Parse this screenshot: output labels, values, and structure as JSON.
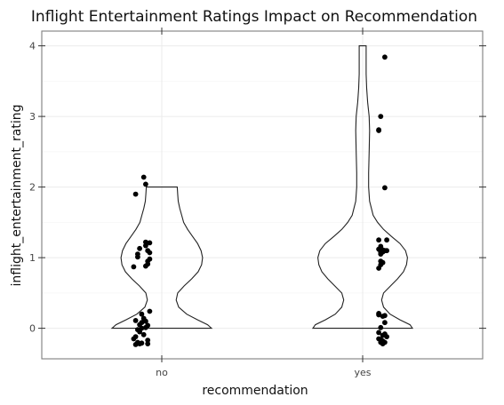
{
  "chart_data": {
    "type": "violin-jitter",
    "title": "Inflight Entertainment Ratings Impact on Recommendation",
    "xlabel": "recommendation",
    "ylabel": "inflight_entertainment_rating",
    "categories": [
      "no",
      "yes"
    ],
    "yticks": [
      0,
      1,
      2,
      3,
      4
    ],
    "ylim": [
      -0.45,
      4.0
    ],
    "grid": true,
    "violins": [
      {
        "category": "no",
        "y_range": [
          0,
          2
        ],
        "density_profile": [
          [
            0.0,
            1.0
          ],
          [
            0.05,
            0.92
          ],
          [
            0.12,
            0.72
          ],
          [
            0.2,
            0.5
          ],
          [
            0.3,
            0.34
          ],
          [
            0.4,
            0.29
          ],
          [
            0.5,
            0.32
          ],
          [
            0.6,
            0.45
          ],
          [
            0.7,
            0.6
          ],
          [
            0.8,
            0.73
          ],
          [
            0.9,
            0.8
          ],
          [
            1.0,
            0.82
          ],
          [
            1.1,
            0.79
          ],
          [
            1.2,
            0.72
          ],
          [
            1.3,
            0.62
          ],
          [
            1.4,
            0.52
          ],
          [
            1.5,
            0.44
          ],
          [
            1.6,
            0.4
          ],
          [
            1.7,
            0.36
          ],
          [
            1.8,
            0.33
          ],
          [
            1.9,
            0.32
          ],
          [
            2.0,
            0.31
          ]
        ]
      },
      {
        "category": "yes",
        "y_range": [
          0,
          4
        ],
        "density_profile": [
          [
            0.0,
            1.0
          ],
          [
            0.05,
            0.95
          ],
          [
            0.12,
            0.75
          ],
          [
            0.2,
            0.55
          ],
          [
            0.3,
            0.42
          ],
          [
            0.4,
            0.38
          ],
          [
            0.5,
            0.42
          ],
          [
            0.6,
            0.56
          ],
          [
            0.7,
            0.7
          ],
          [
            0.8,
            0.82
          ],
          [
            0.9,
            0.88
          ],
          [
            1.0,
            0.9
          ],
          [
            1.1,
            0.86
          ],
          [
            1.2,
            0.75
          ],
          [
            1.3,
            0.58
          ],
          [
            1.4,
            0.42
          ],
          [
            1.5,
            0.3
          ],
          [
            1.6,
            0.21
          ],
          [
            1.8,
            0.14
          ],
          [
            2.0,
            0.12
          ],
          [
            2.2,
            0.12
          ],
          [
            2.5,
            0.13
          ],
          [
            2.8,
            0.14
          ],
          [
            3.0,
            0.13
          ],
          [
            3.2,
            0.1
          ],
          [
            3.4,
            0.08
          ],
          [
            3.6,
            0.07
          ],
          [
            3.8,
            0.07
          ],
          [
            4.0,
            0.07
          ]
        ]
      }
    ],
    "points": [
      {
        "x": -0.09,
        "y": 2.14,
        "category": "no"
      },
      {
        "x": -0.08,
        "y": 2.04,
        "category": "no"
      },
      {
        "x": -0.13,
        "y": 1.9,
        "category": "no"
      },
      {
        "x": -0.08,
        "y": 1.22,
        "category": "no"
      },
      {
        "x": -0.06,
        "y": 1.21,
        "category": "no"
      },
      {
        "x": -0.08,
        "y": 1.17,
        "category": "no"
      },
      {
        "x": -0.11,
        "y": 1.13,
        "category": "no"
      },
      {
        "x": -0.07,
        "y": 1.1,
        "category": "no"
      },
      {
        "x": -0.06,
        "y": 1.07,
        "category": "no"
      },
      {
        "x": -0.12,
        "y": 1.05,
        "category": "no"
      },
      {
        "x": -0.12,
        "y": 1.01,
        "category": "no"
      },
      {
        "x": -0.06,
        "y": 0.98,
        "category": "no"
      },
      {
        "x": -0.07,
        "y": 0.95,
        "category": "no"
      },
      {
        "x": -0.07,
        "y": 0.91,
        "category": "no"
      },
      {
        "x": -0.08,
        "y": 0.88,
        "category": "no"
      },
      {
        "x": -0.14,
        "y": 0.87,
        "category": "no"
      },
      {
        "x": -0.06,
        "y": 0.24,
        "category": "no"
      },
      {
        "x": -0.1,
        "y": 0.2,
        "category": "no"
      },
      {
        "x": -0.09,
        "y": 0.14,
        "category": "no"
      },
      {
        "x": -0.13,
        "y": 0.11,
        "category": "no"
      },
      {
        "x": -0.08,
        "y": 0.1,
        "category": "no"
      },
      {
        "x": -0.1,
        "y": 0.08,
        "category": "no"
      },
      {
        "x": -0.11,
        "y": 0.05,
        "category": "no"
      },
      {
        "x": -0.07,
        "y": 0.04,
        "category": "no"
      },
      {
        "x": -0.08,
        "y": 0.01,
        "category": "no"
      },
      {
        "x": -0.1,
        "y": 0.0,
        "category": "no"
      },
      {
        "x": -0.12,
        "y": -0.02,
        "category": "no"
      },
      {
        "x": -0.11,
        "y": -0.05,
        "category": "no"
      },
      {
        "x": -0.09,
        "y": -0.09,
        "category": "no"
      },
      {
        "x": -0.13,
        "y": -0.12,
        "category": "no"
      },
      {
        "x": -0.14,
        "y": -0.15,
        "category": "no"
      },
      {
        "x": -0.07,
        "y": -0.17,
        "category": "no"
      },
      {
        "x": -0.12,
        "y": -0.2,
        "category": "no"
      },
      {
        "x": -0.1,
        "y": -0.21,
        "category": "no"
      },
      {
        "x": -0.07,
        "y": -0.22,
        "category": "no"
      },
      {
        "x": -0.11,
        "y": -0.22,
        "category": "no"
      },
      {
        "x": -0.13,
        "y": -0.23,
        "category": "no"
      },
      {
        "x": 0.11,
        "y": 3.84,
        "category": "yes"
      },
      {
        "x": 0.09,
        "y": 3.0,
        "category": "yes"
      },
      {
        "x": 0.08,
        "y": 2.81,
        "category": "yes"
      },
      {
        "x": 0.08,
        "y": 2.8,
        "category": "yes"
      },
      {
        "x": 0.11,
        "y": 1.99,
        "category": "yes"
      },
      {
        "x": 0.08,
        "y": 1.25,
        "category": "yes"
      },
      {
        "x": 0.12,
        "y": 1.25,
        "category": "yes"
      },
      {
        "x": 0.09,
        "y": 1.16,
        "category": "yes"
      },
      {
        "x": 0.08,
        "y": 1.12,
        "category": "yes"
      },
      {
        "x": 0.1,
        "y": 1.11,
        "category": "yes"
      },
      {
        "x": 0.11,
        "y": 1.1,
        "category": "yes"
      },
      {
        "x": 0.12,
        "y": 1.1,
        "category": "yes"
      },
      {
        "x": 0.09,
        "y": 1.08,
        "category": "yes"
      },
      {
        "x": 0.1,
        "y": 1.08,
        "category": "yes"
      },
      {
        "x": 0.09,
        "y": 1.05,
        "category": "yes"
      },
      {
        "x": 0.09,
        "y": 0.95,
        "category": "yes"
      },
      {
        "x": 0.1,
        "y": 0.93,
        "category": "yes"
      },
      {
        "x": 0.09,
        "y": 0.9,
        "category": "yes"
      },
      {
        "x": 0.08,
        "y": 0.85,
        "category": "yes"
      },
      {
        "x": 0.08,
        "y": 0.21,
        "category": "yes"
      },
      {
        "x": 0.08,
        "y": 0.19,
        "category": "yes"
      },
      {
        "x": 0.11,
        "y": 0.18,
        "category": "yes"
      },
      {
        "x": 0.1,
        "y": 0.17,
        "category": "yes"
      },
      {
        "x": 0.11,
        "y": 0.08,
        "category": "yes"
      },
      {
        "x": 0.09,
        "y": 0.01,
        "category": "yes"
      },
      {
        "x": 0.08,
        "y": -0.06,
        "category": "yes"
      },
      {
        "x": 0.11,
        "y": -0.08,
        "category": "yes"
      },
      {
        "x": 0.1,
        "y": -0.1,
        "category": "yes"
      },
      {
        "x": 0.12,
        "y": -0.12,
        "category": "yes"
      },
      {
        "x": 0.08,
        "y": -0.15,
        "category": "yes"
      },
      {
        "x": 0.09,
        "y": -0.16,
        "category": "yes"
      },
      {
        "x": 0.1,
        "y": -0.18,
        "category": "yes"
      },
      {
        "x": 0.09,
        "y": -0.2,
        "category": "yes"
      },
      {
        "x": 0.11,
        "y": -0.2,
        "category": "yes"
      },
      {
        "x": 0.1,
        "y": -0.22,
        "category": "yes"
      }
    ],
    "colors": {
      "points": "#000000",
      "violin_outline": "#222222",
      "panel_border": "#7f7f7f",
      "grid": "#ebebeb",
      "background": "#ffffff"
    }
  }
}
